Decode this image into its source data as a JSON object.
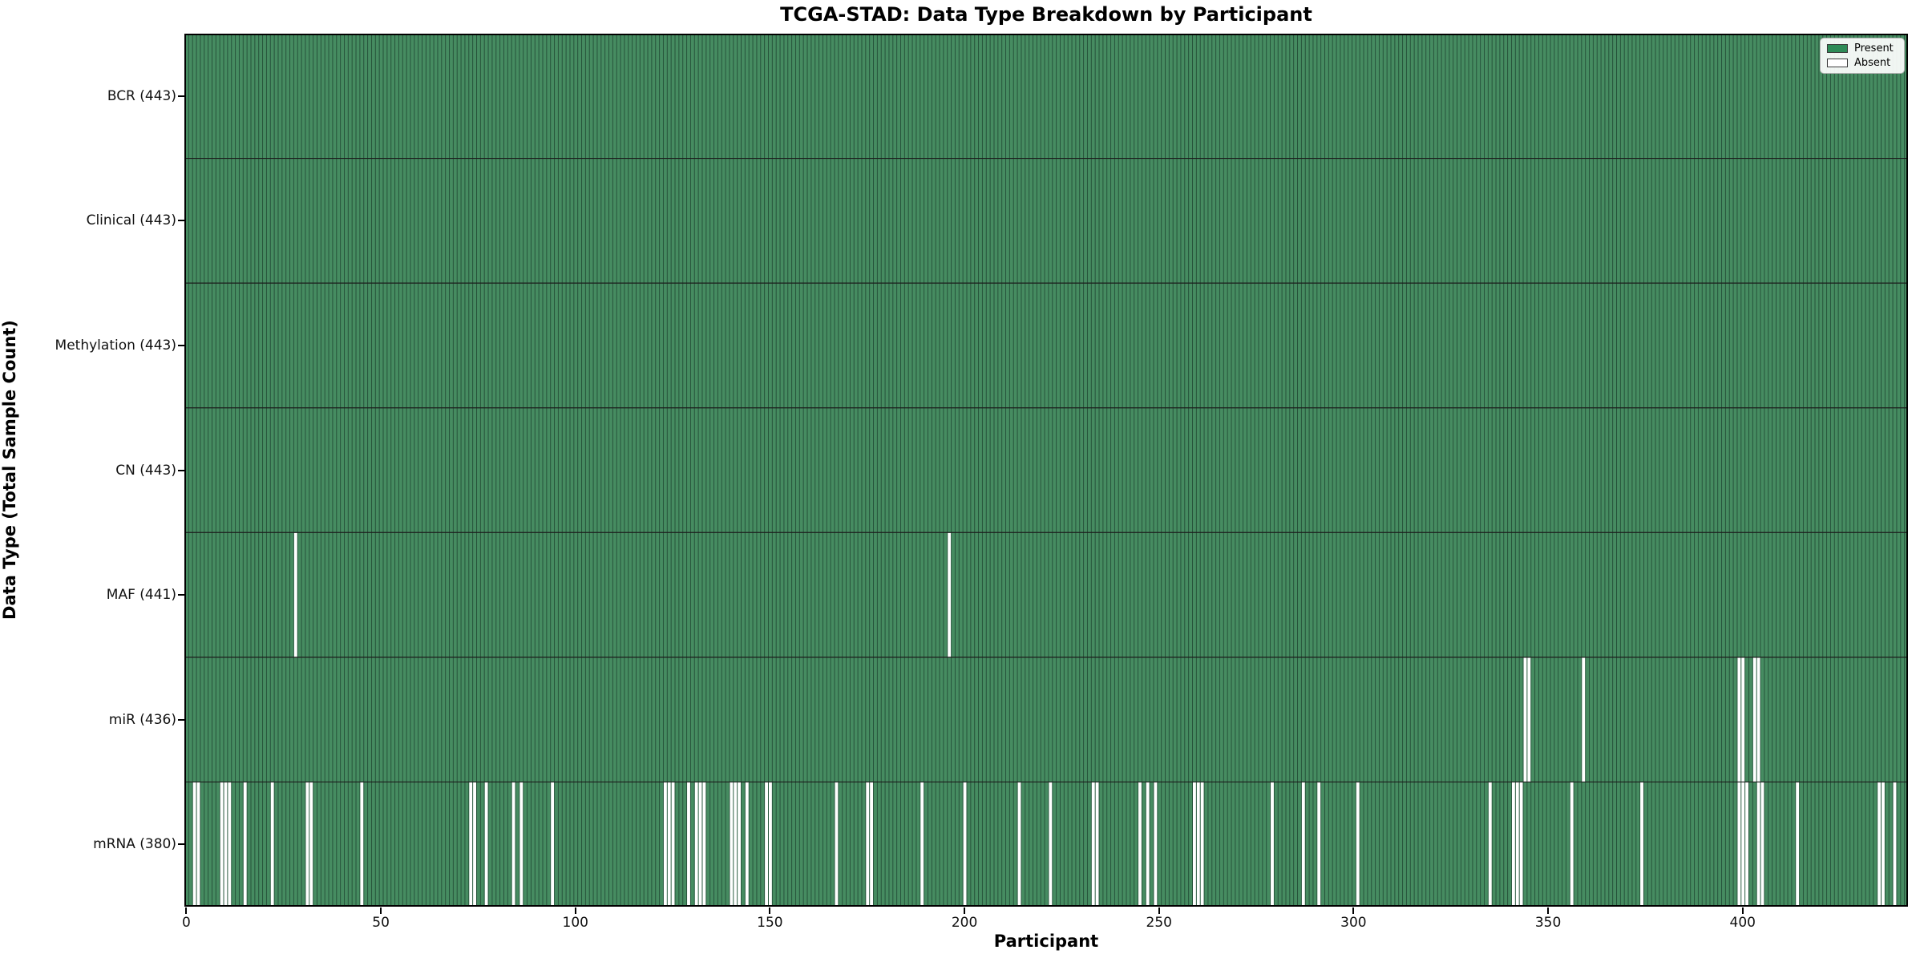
{
  "chart_data": {
    "type": "heatmap",
    "title": "TCGA-STAD: Data Type Breakdown by Participant",
    "xlabel": "Participant",
    "ylabel": "Data Type (Total Sample Count)",
    "n_participants": 443,
    "x_ticks": [
      0,
      50,
      100,
      150,
      200,
      250,
      300,
      350,
      400
    ],
    "grid": false,
    "legend_position": "upper right",
    "legend": [
      {
        "label": "Present",
        "color": "#2E8B57"
      },
      {
        "label": "Absent",
        "color": "#FFFFFF"
      }
    ],
    "colors": {
      "present_fill": "#468c61",
      "bar_edge": "#26523a",
      "absent_fill": "#ffffff",
      "row_divider": "#1c1c1c",
      "plot_border": "#000000"
    },
    "rows": [
      {
        "label": "BCR (443)",
        "data_type": "BCR",
        "present_count": 443,
        "absent_count": 0,
        "absent_participants": []
      },
      {
        "label": "Clinical (443)",
        "data_type": "Clinical",
        "present_count": 443,
        "absent_count": 0,
        "absent_participants": []
      },
      {
        "label": "Methylation (443)",
        "data_type": "Methylation",
        "present_count": 443,
        "absent_count": 0,
        "absent_participants": []
      },
      {
        "label": "CN (443)",
        "data_type": "CN",
        "present_count": 443,
        "absent_count": 0,
        "absent_participants": []
      },
      {
        "label": "MAF (441)",
        "data_type": "MAF",
        "present_count": 441,
        "absent_count": 2,
        "absent_participants": [
          28,
          196
        ]
      },
      {
        "label": "miR (436)",
        "data_type": "miR",
        "present_count": 436,
        "absent_count": 7,
        "absent_participants": [
          344,
          345,
          359,
          399,
          400,
          403,
          404
        ]
      },
      {
        "label": "mRNA (380)",
        "data_type": "mRNA",
        "present_count": 380,
        "absent_count": 63,
        "absent_participants": [
          2,
          3,
          9,
          10,
          11,
          15,
          22,
          31,
          32,
          45,
          73,
          74,
          77,
          84,
          86,
          94,
          123,
          124,
          125,
          129,
          131,
          132,
          133,
          140,
          141,
          142,
          144,
          149,
          150,
          167,
          175,
          176,
          189,
          200,
          214,
          222,
          233,
          234,
          245,
          247,
          249,
          259,
          260,
          261,
          279,
          287,
          291,
          301,
          335,
          341,
          342,
          343,
          356,
          374,
          399,
          400,
          401,
          404,
          405,
          414,
          435,
          436,
          439
        ]
      }
    ]
  }
}
